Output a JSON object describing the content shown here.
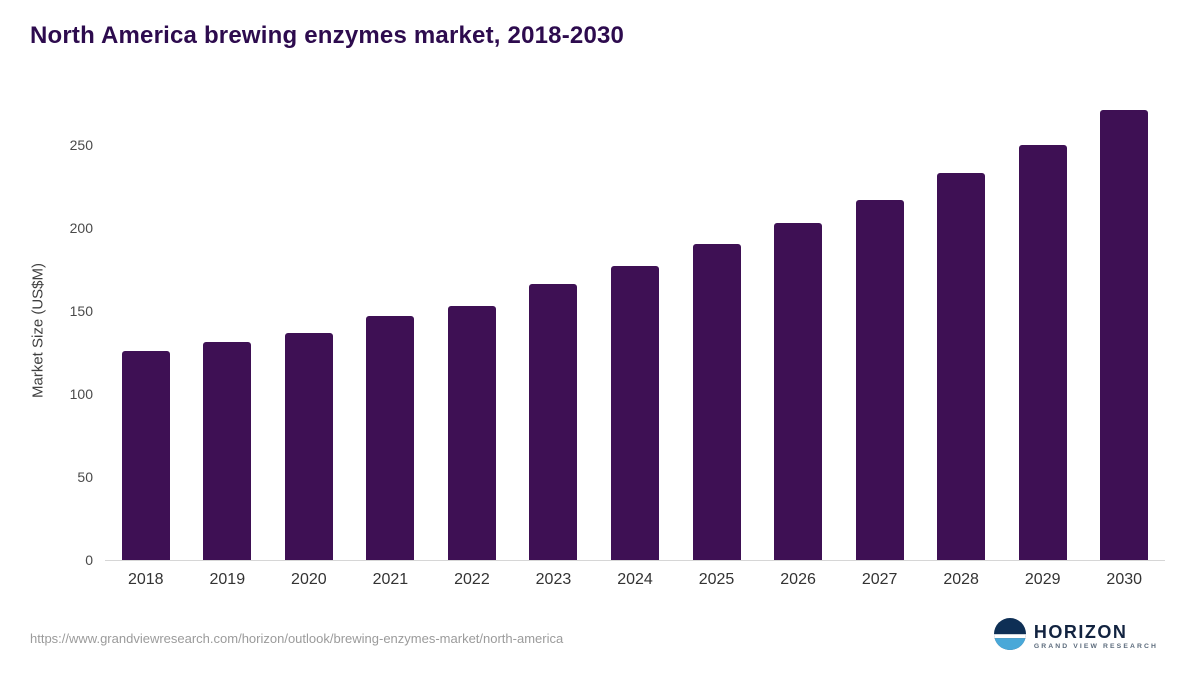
{
  "title": "North America brewing enzymes market, 2018-2030",
  "chart_data": {
    "type": "bar",
    "categories": [
      "2018",
      "2019",
      "2020",
      "2021",
      "2022",
      "2023",
      "2024",
      "2025",
      "2026",
      "2027",
      "2028",
      "2029",
      "2030"
    ],
    "values": [
      126,
      131,
      137,
      147,
      153,
      166,
      177,
      190,
      203,
      217,
      233,
      250,
      271
    ],
    "title": "North America brewing enzymes market, 2018-2030",
    "xlabel": "",
    "ylabel": "Market Size (US$M)",
    "ylim": [
      0,
      277
    ],
    "yticks": [
      0,
      50,
      100,
      150,
      200,
      250
    ],
    "grid": "none",
    "legend_position": "none",
    "bar_color": "#3e1054"
  },
  "footer": {
    "source_url": "https://www.grandviewresearch.com/horizon/outlook/brewing-enzymes-market/north-america"
  },
  "logo": {
    "name": "HORIZON",
    "subtitle": "GRAND VIEW RESEARCH",
    "circle_navy": "#0e2f55",
    "circle_blue": "#49a8d8"
  },
  "colors": {
    "title_text": "#2d0b4e",
    "axis_line": "#d6d6d6",
    "tick_text": "#4a4a4a"
  }
}
